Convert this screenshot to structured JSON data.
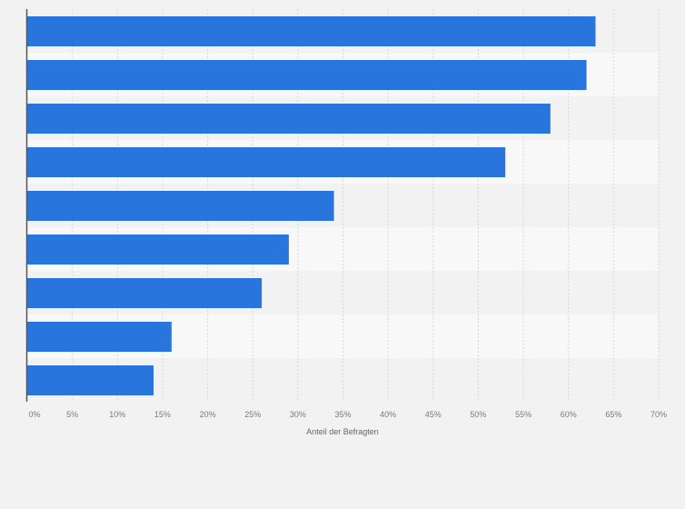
{
  "chart_data": {
    "type": "bar",
    "orientation": "horizontal",
    "title": "",
    "xlabel": "Anteil der Befragten",
    "ylabel": "",
    "xlim": [
      0,
      70
    ],
    "x_ticks": [
      0,
      5,
      10,
      15,
      20,
      25,
      30,
      35,
      40,
      45,
      50,
      55,
      60,
      65,
      70
    ],
    "x_tick_labels": [
      "0%",
      "5%",
      "10%",
      "15%",
      "20%",
      "25%",
      "30%",
      "35%",
      "40%",
      "45%",
      "50%",
      "55%",
      "60%",
      "65%",
      "70%"
    ],
    "values": [
      63,
      62,
      58,
      53,
      34,
      29,
      26,
      16,
      14
    ],
    "unit": "%",
    "grid": true,
    "colors": {
      "bar": "#2876dd",
      "background": "#f2f2f2",
      "band_alt": "#f8f8f8",
      "grid": "#d8d8d8",
      "axis": "#555555"
    }
  }
}
